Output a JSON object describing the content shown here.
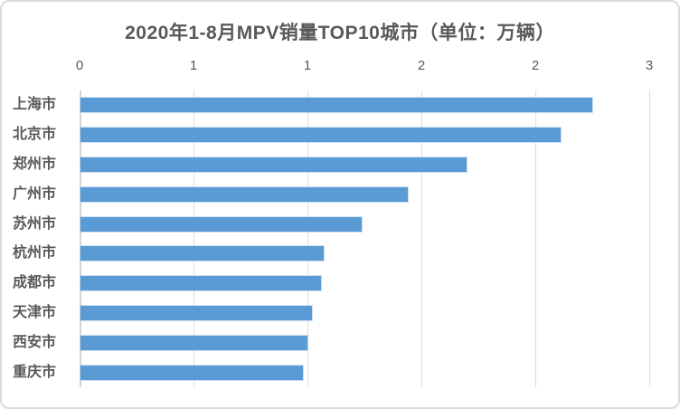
{
  "chart_data": {
    "type": "bar",
    "orientation": "horizontal",
    "title": "2020年1-8月MPV销量TOP10城市（单位：万辆）",
    "categories": [
      "上海市",
      "北京市",
      "郑州市",
      "广州市",
      "苏州市",
      "杭州市",
      "成都市",
      "天津市",
      "西安市",
      "重庆市"
    ],
    "values": [
      2.25,
      2.11,
      1.7,
      1.44,
      1.24,
      1.07,
      1.06,
      1.02,
      1.0,
      0.98
    ],
    "xlabel": "",
    "ylabel": "",
    "xlim": [
      0,
      2.5
    ],
    "x_ticks": [
      0,
      0.5,
      1,
      1.5,
      2,
      2.5
    ],
    "x_tick_labels": [
      "0",
      "1",
      "1",
      "2",
      "2",
      "3"
    ],
    "axis_position": "top",
    "grid": true,
    "legend_position": "none",
    "bar_color": "#5b9bd5",
    "gridline_color": "#dcdcdc",
    "text_color": "#595959",
    "background_color": "#ffffff"
  }
}
